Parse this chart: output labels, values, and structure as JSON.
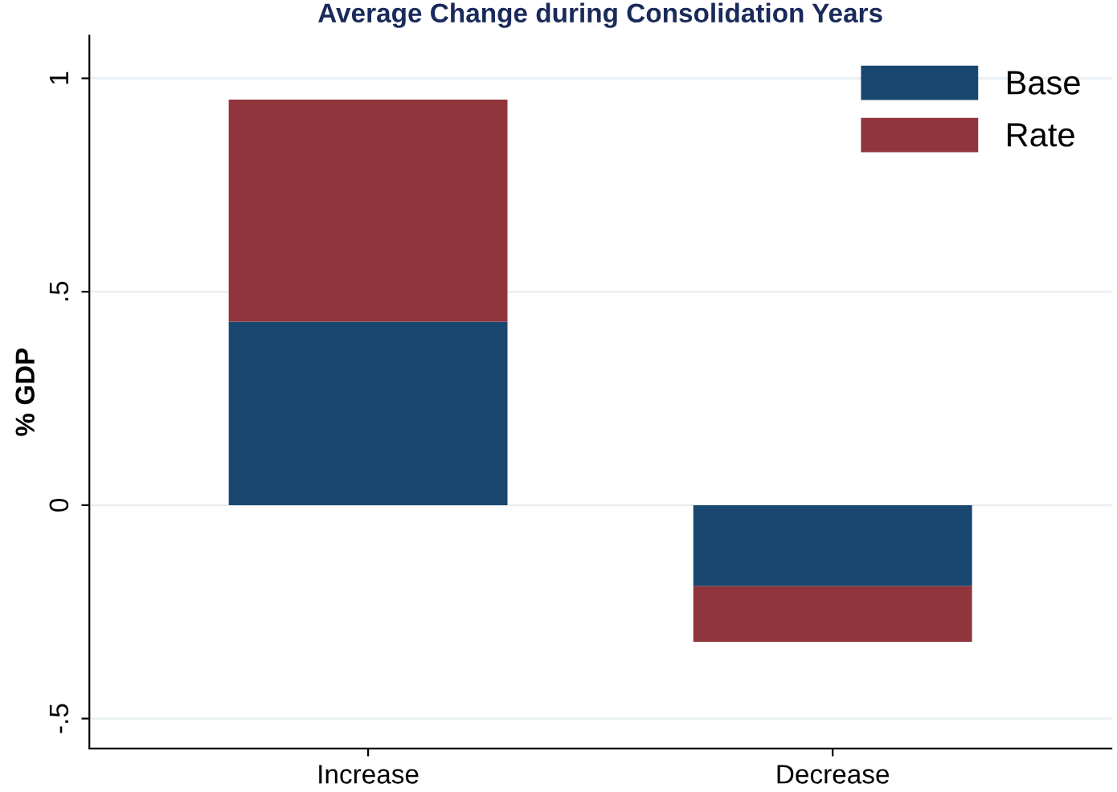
{
  "chart_data": {
    "type": "bar",
    "title": "Average Change during Consolidation Years",
    "ylabel": "% GDP",
    "categories": [
      "Increase",
      "Decrease"
    ],
    "stacked": true,
    "series": [
      {
        "name": "Base",
        "color": "#1a476f",
        "values": [
          0.43,
          -0.19
        ]
      },
      {
        "name": "Rate",
        "color": "#90353b",
        "values": [
          0.52,
          -0.13
        ]
      }
    ],
    "ylim": [
      -0.57,
      1.1
    ],
    "yticks": [
      {
        "value": -0.5,
        "label": "-.5"
      },
      0,
      {
        "value": 0.5,
        "label": ".5"
      },
      1
    ],
    "grid": "y",
    "legend": "top right"
  }
}
